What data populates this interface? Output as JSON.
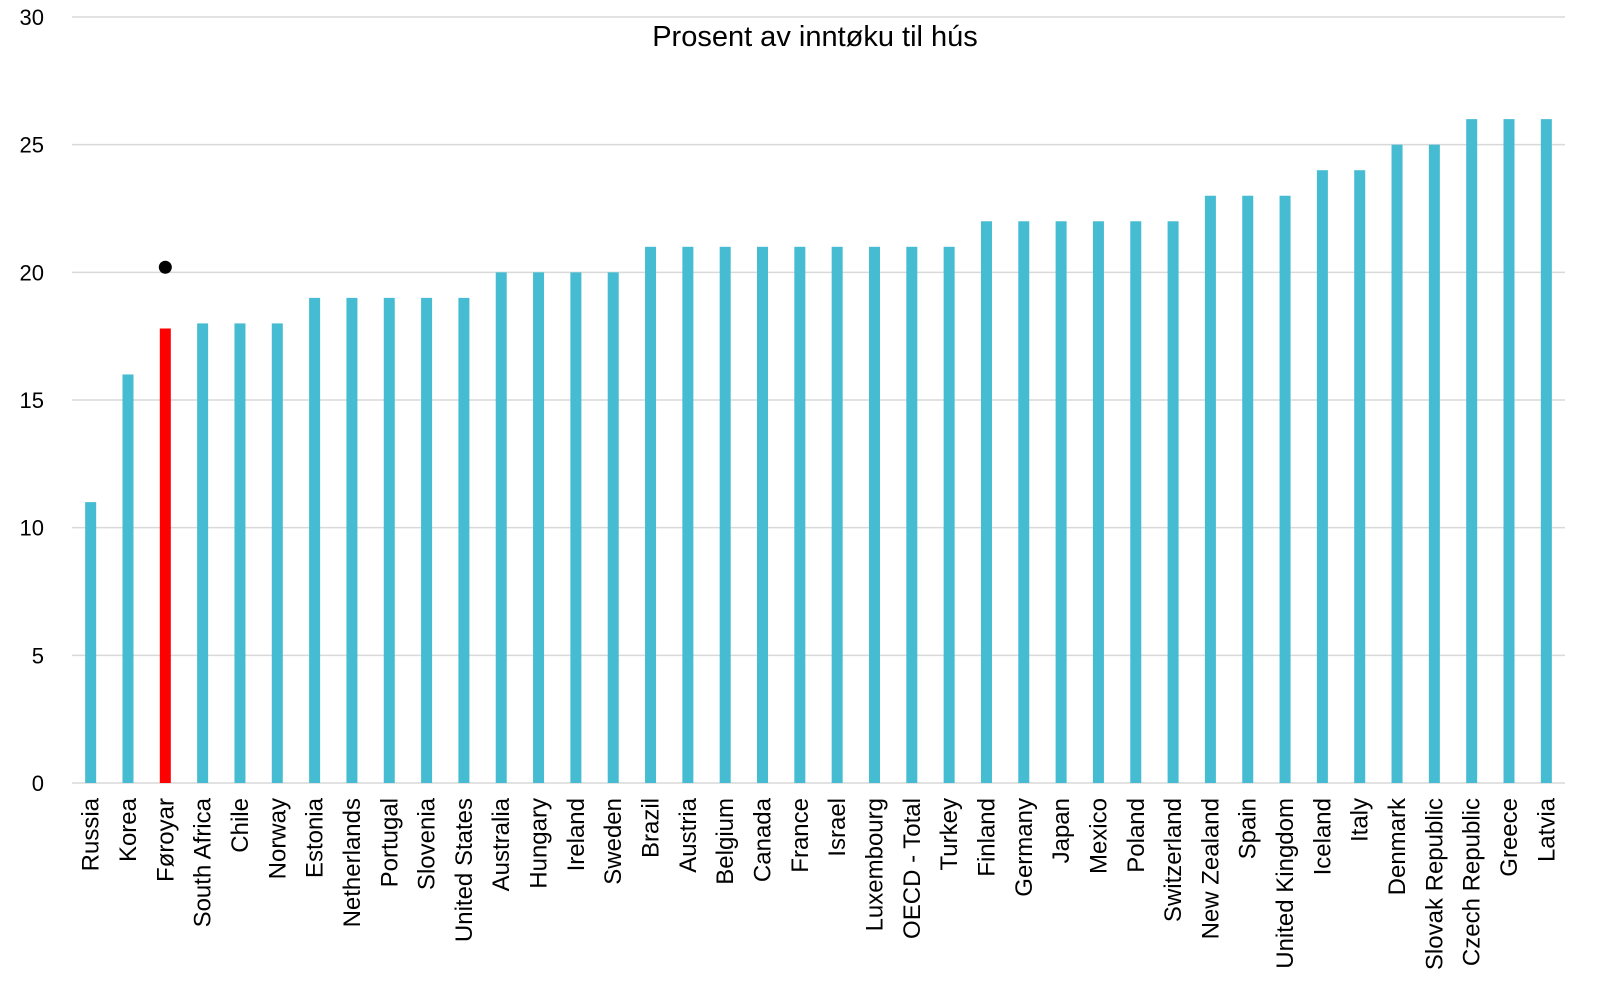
{
  "chart_data": {
    "type": "bar",
    "title": "Prosent av inntøku til hús",
    "xlabel": "",
    "ylabel": "",
    "ylim": [
      0,
      30
    ],
    "yticks": [
      0,
      5,
      10,
      15,
      20,
      25,
      30
    ],
    "grid": true,
    "legend": "none",
    "categories": [
      "Russia",
      "Korea",
      "Føroyar",
      "South Africa",
      "Chile",
      "Norway",
      "Estonia",
      "Netherlands",
      "Portugal",
      "Slovenia",
      "United States",
      "Australia",
      "Hungary",
      "Ireland",
      "Sweden",
      "Brazil",
      "Austria",
      "Belgium",
      "Canada",
      "France",
      "Israel",
      "Luxembourg",
      "OECD - Total",
      "Turkey",
      "Finland",
      "Germany",
      "Japan",
      "Mexico",
      "Poland",
      "Switzerland",
      "New Zealand",
      "Spain",
      "United Kingdom",
      "Iceland",
      "Italy",
      "Denmark",
      "Slovak Republic",
      "Czech Republic",
      "Greece",
      "Latvia"
    ],
    "values": [
      11,
      16,
      17.8,
      18,
      18,
      18,
      19,
      19,
      19,
      19,
      19,
      20,
      20,
      20,
      20,
      21,
      21,
      21,
      21,
      21,
      21,
      21,
      21,
      21,
      22,
      22,
      22,
      22,
      22,
      22,
      23,
      23,
      23,
      24,
      24,
      25,
      25,
      26,
      26,
      26
    ],
    "highlight": {
      "category": "Føroyar",
      "color": "#ff0000"
    },
    "marker": {
      "category": "Føroyar",
      "value": 20.2,
      "color": "#000000"
    },
    "bar_color": "#45bcd2",
    "grid_color": "#d9d9d9"
  }
}
